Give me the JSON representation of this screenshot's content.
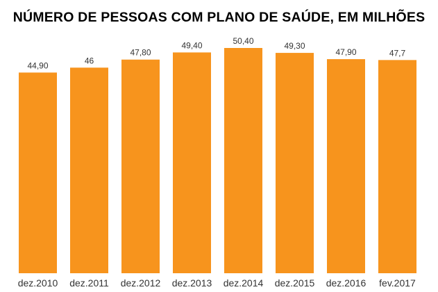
{
  "chart_data": {
    "type": "bar",
    "title": "NÚMERO DE PESSOAS COM PLANO DE SAÚDE, EM MILHÕES",
    "categories": [
      "dez.2010",
      "dez.2011",
      "dez.2012",
      "dez.2013",
      "dez.2014",
      "dez.2015",
      "dez.2016",
      "fev.2017"
    ],
    "values": [
      44.9,
      46,
      47.8,
      49.4,
      50.4,
      49.3,
      47.9,
      47.7
    ],
    "data_labels": [
      "44,90",
      "46",
      "47,80",
      "49,40",
      "50,40",
      "49,30",
      "47,90",
      "47,7"
    ],
    "xlabel": "",
    "ylabel": "",
    "ylim": [
      0,
      50.4
    ],
    "grid": false,
    "bar_color": "#F7941D"
  }
}
